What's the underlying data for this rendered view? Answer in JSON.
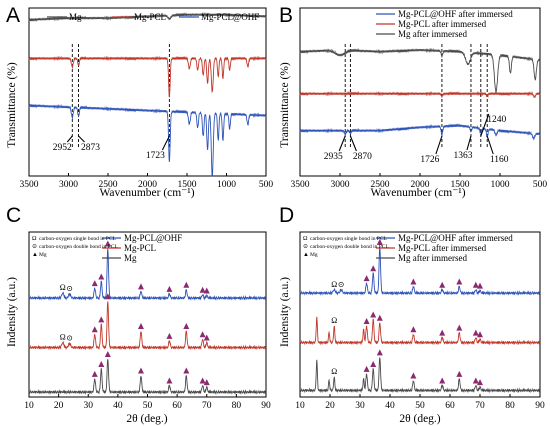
{
  "colors": {
    "Mg": "#4a4a4a",
    "Mg-PCL": "#c0392b",
    "Mg-PCL@OHF": "#2e54b8",
    "marker": "#8b2a6e"
  },
  "chart_data": [
    {
      "panel": "A",
      "type": "line",
      "xlabel": "Wavenumber (cm⁻¹)",
      "ylabel": "Transmittance (%)",
      "xlim": [
        3500,
        500
      ],
      "x_ticks": [
        "3500",
        "3000",
        "2500",
        "2000",
        "1500",
        "1000",
        "500"
      ],
      "legend": [
        "Mg",
        "Mg-PCL",
        "Mg-PCL@OHF"
      ],
      "legend_position": "top",
      "annotations": [
        "2952",
        "2873",
        "1723"
      ],
      "dashed_markers": [
        2952,
        2873,
        1723
      ],
      "series": [
        {
          "name": "Mg",
          "color": "#4a4a4a",
          "offset": 0.93,
          "baseline_x": [
            3500,
            3000,
            2500,
            2000,
            1500,
            1000,
            500
          ],
          "baseline_y": [
            0.0,
            0.01,
            0.01,
            0.02,
            0.03,
            0.03,
            0.02
          ],
          "peaks": [
            [
              1723,
              0.02,
              18
            ]
          ]
        },
        {
          "name": "Mg-PCL",
          "color": "#c0392b",
          "offset": 0.7,
          "baseline_x": [
            3500,
            3000,
            2500,
            2000,
            1500,
            1000,
            500
          ],
          "baseline_y": [
            0.0,
            0.0,
            0.0,
            0.0,
            0.0,
            0.0,
            0.0
          ],
          "peaks": [
            [
              2952,
              0.05,
              12
            ],
            [
              2873,
              0.04,
              10
            ],
            [
              1723,
              0.23,
              10
            ],
            [
              1470,
              0.06,
              12
            ],
            [
              1365,
              0.07,
              10
            ],
            [
              1295,
              0.1,
              10
            ],
            [
              1240,
              0.15,
              10
            ],
            [
              1180,
              0.2,
              12
            ],
            [
              1105,
              0.11,
              9
            ],
            [
              1045,
              0.12,
              9
            ],
            [
              960,
              0.07,
              9
            ],
            [
              730,
              0.05,
              10
            ]
          ]
        },
        {
          "name": "Mg-PCL@OHF",
          "color": "#2e54b8",
          "offset": 0.42,
          "baseline_x": [
            3500,
            3000,
            2500,
            2000,
            1500,
            1000,
            500
          ],
          "baseline_y": [
            0.0,
            -0.01,
            -0.02,
            -0.03,
            -0.04,
            -0.05,
            -0.06
          ],
          "peaks": [
            [
              2952,
              0.06,
              12
            ],
            [
              2873,
              0.05,
              10
            ],
            [
              1723,
              0.3,
              10
            ],
            [
              1470,
              0.07,
              12
            ],
            [
              1365,
              0.09,
              10
            ],
            [
              1295,
              0.14,
              10
            ],
            [
              1240,
              0.22,
              10
            ],
            [
              1180,
              0.38,
              12
            ],
            [
              1105,
              0.16,
              9
            ],
            [
              1045,
              0.16,
              9
            ],
            [
              960,
              0.09,
              9
            ],
            [
              730,
              0.06,
              10
            ]
          ]
        }
      ]
    },
    {
      "panel": "B",
      "type": "line",
      "xlabel": "Wavenumber (cm⁻¹)",
      "ylabel": "Transmittance (%)",
      "xlim": [
        3500,
        500
      ],
      "x_ticks": [
        "3500",
        "3000",
        "2500",
        "2000",
        "1500",
        "1000",
        "500"
      ],
      "legend": [
        "Mg-PCL@OHF after immersed",
        "Mg-PCL after immersed",
        "Mg after immersed"
      ],
      "legend_position": "top-right",
      "annotations": [
        "2935",
        "2870",
        "1726",
        "1363",
        "1240",
        "1160"
      ],
      "dashed_markers": [
        2935,
        2870,
        1726,
        1363,
        1240,
        1160
      ],
      "series": [
        {
          "name": "Mg after immersed",
          "color": "#4a4a4a",
          "offset": 0.74,
          "baseline_x": [
            3500,
            3000,
            2500,
            2000,
            1500,
            1000,
            500
          ],
          "baseline_y": [
            0.0,
            0.01,
            0.0,
            0.01,
            0.0,
            -0.02,
            -0.05
          ],
          "peaks": [
            [
              3000,
              0.03,
              60
            ],
            [
              1726,
              0.03,
              10
            ],
            [
              1400,
              0.07,
              30
            ],
            [
              1050,
              0.22,
              20
            ],
            [
              870,
              0.1,
              12
            ],
            [
              560,
              0.12,
              14
            ]
          ]
        },
        {
          "name": "Mg-PCL after immersed",
          "color": "#c0392b",
          "offset": 0.49,
          "baseline_x": [
            3500,
            3000,
            2500,
            2000,
            1500,
            1000,
            500
          ],
          "baseline_y": [
            0.0,
            0.0,
            0.0,
            0.0,
            0.0,
            0.0,
            0.0
          ],
          "peaks": [
            [
              1726,
              0.015,
              10
            ],
            [
              1160,
              0.015,
              10
            ],
            [
              570,
              0.02,
              12
            ]
          ]
        },
        {
          "name": "Mg-PCL@OHF after immersed",
          "color": "#2e54b8",
          "offset": 0.27,
          "baseline_x": [
            3500,
            3000,
            2500,
            2000,
            1500,
            1000,
            500
          ],
          "baseline_y": [
            0.0,
            0.0,
            0.0,
            0.02,
            0.03,
            0.0,
            -0.02
          ],
          "peaks": [
            [
              2935,
              0.02,
              12
            ],
            [
              2870,
              0.015,
              10
            ],
            [
              1726,
              0.05,
              10
            ],
            [
              1363,
              0.025,
              10
            ],
            [
              1240,
              0.03,
              10
            ],
            [
              1160,
              0.045,
              10
            ],
            [
              1050,
              0.03,
              12
            ],
            [
              580,
              0.03,
              14
            ]
          ]
        }
      ]
    },
    {
      "panel": "C",
      "type": "line",
      "xlabel": "2θ (deg.)",
      "ylabel": "Indensity (a.u.)",
      "xlim": [
        10,
        90
      ],
      "x_ticks": [
        "10",
        "20",
        "30",
        "40",
        "50",
        "60",
        "70",
        "80",
        "90"
      ],
      "legend": [
        "Mg-PCL@OHF",
        "Mg-PCL",
        "Mg"
      ],
      "legend_position": "top-right",
      "symbol_legend": [
        {
          "symbol": "Ω",
          "text": "carbon-oxygen single bond in PCL"
        },
        {
          "symbol": "⊙",
          "text": "carbon-oxygen double bond in PCL"
        },
        {
          "symbol": "▲",
          "text": "Mg"
        }
      ],
      "mg_peaks_2theta": [
        32.2,
        34.4,
        36.6,
        47.8,
        57.4,
        63.1,
        68.6,
        70.0
      ],
      "pcl_peaks_2theta": [
        21.4,
        23.7
      ],
      "series": [
        {
          "name": "Mg-PCL@OHF",
          "color": "#2e54b8",
          "offset": 0.6,
          "peaks": [
            [
              21.4,
              0.03,
              0.35
            ],
            [
              23.7,
              0.025,
              0.35
            ],
            [
              32.2,
              0.06,
              0.25
            ],
            [
              34.4,
              0.1,
              0.25
            ],
            [
              36.6,
              0.3,
              0.25
            ],
            [
              47.8,
              0.04,
              0.25
            ],
            [
              57.4,
              0.025,
              0.25
            ],
            [
              63.1,
              0.05,
              0.25
            ],
            [
              68.6,
              0.02,
              0.25
            ],
            [
              70.0,
              0.015,
              0.25
            ]
          ]
        },
        {
          "name": "Mg-PCL",
          "color": "#c0392b",
          "offset": 0.3,
          "peaks": [
            [
              21.4,
              0.03,
              0.35
            ],
            [
              23.7,
              0.025,
              0.35
            ],
            [
              32.2,
              0.08,
              0.25
            ],
            [
              34.4,
              0.14,
              0.25
            ],
            [
              36.6,
              0.28,
              0.25
            ],
            [
              47.8,
              0.1,
              0.25
            ],
            [
              57.4,
              0.04,
              0.25
            ],
            [
              63.1,
              0.1,
              0.25
            ],
            [
              68.6,
              0.05,
              0.25
            ],
            [
              70.0,
              0.03,
              0.25
            ]
          ]
        },
        {
          "name": "Mg",
          "color": "#4a4a4a",
          "offset": 0.03,
          "peaks": [
            [
              32.2,
              0.08,
              0.25
            ],
            [
              34.4,
              0.14,
              0.25
            ],
            [
              36.6,
              0.2,
              0.25
            ],
            [
              47.8,
              0.1,
              0.25
            ],
            [
              57.4,
              0.04,
              0.25
            ],
            [
              63.1,
              0.1,
              0.25
            ],
            [
              68.6,
              0.04,
              0.25
            ],
            [
              70.0,
              0.03,
              0.25
            ]
          ]
        }
      ]
    },
    {
      "panel": "D",
      "type": "line",
      "xlabel": "2θ (deg.)",
      "ylabel": "Indensity (a.u.)",
      "xlim": [
        10,
        90
      ],
      "x_ticks": [
        "10",
        "20",
        "30",
        "40",
        "50",
        "60",
        "70",
        "80",
        "90"
      ],
      "legend": [
        "Mg-PCL@OHF after immersed",
        "Mg-PCL after immersed",
        "Mg after immersed"
      ],
      "legend_position": "top-right",
      "symbol_legend": [
        {
          "symbol": "Ω",
          "text": "carbon-oxygen single bond in PCL"
        },
        {
          "symbol": "⊙",
          "text": "carbon-oxygen double bond in PCL"
        },
        {
          "symbol": "▲",
          "text": "Mg"
        }
      ],
      "mg_peaks_2theta": [
        32.2,
        34.4,
        36.6,
        47.8,
        57.4,
        63.1,
        68.6,
        70.0
      ],
      "pcl_peaks_2theta": [
        21.4,
        23.7
      ],
      "series": [
        {
          "name": "Mg-PCL@OHF after immersed",
          "color": "#2e54b8",
          "offset": 0.63,
          "peaks": [
            [
              21.4,
              0.02,
              0.35
            ],
            [
              23.7,
              0.02,
              0.35
            ],
            [
              32.2,
              0.06,
              0.25
            ],
            [
              34.4,
              0.12,
              0.25
            ],
            [
              36.6,
              0.28,
              0.25
            ],
            [
              47.8,
              0.04,
              0.25
            ],
            [
              57.4,
              0.02,
              0.25
            ],
            [
              63.1,
              0.04,
              0.25
            ],
            [
              68.6,
              0.02,
              0.25
            ],
            [
              70.0,
              0.015,
              0.25
            ]
          ]
        },
        {
          "name": "Mg-PCL after immersed",
          "color": "#c0392b",
          "offset": 0.33,
          "peaks": [
            [
              15.6,
              0.15,
              0.2
            ],
            [
              19.7,
              0.06,
              0.2
            ],
            [
              21.4,
              0.1,
              0.2
            ],
            [
              31.2,
              0.08,
              0.2
            ],
            [
              32.2,
              0.1,
              0.25
            ],
            [
              34.4,
              0.14,
              0.25
            ],
            [
              36.6,
              0.12,
              0.25
            ],
            [
              47.8,
              0.05,
              0.25
            ],
            [
              57.4,
              0.03,
              0.25
            ],
            [
              63.1,
              0.06,
              0.25
            ],
            [
              68.6,
              0.03,
              0.25
            ],
            [
              70.0,
              0.02,
              0.25
            ]
          ]
        },
        {
          "name": "Mg after immersed",
          "color": "#4a4a4a",
          "offset": 0.04,
          "peaks": [
            [
              15.6,
              0.18,
              0.2
            ],
            [
              19.7,
              0.06,
              0.2
            ],
            [
              21.4,
              0.08,
              0.2
            ],
            [
              31.2,
              0.07,
              0.2
            ],
            [
              32.2,
              0.1,
              0.25
            ],
            [
              34.4,
              0.13,
              0.25
            ],
            [
              36.6,
              0.2,
              0.25
            ],
            [
              47.8,
              0.06,
              0.25
            ],
            [
              57.4,
              0.03,
              0.25
            ],
            [
              63.1,
              0.07,
              0.25
            ],
            [
              68.6,
              0.03,
              0.25
            ],
            [
              70.0,
              0.02,
              0.25
            ]
          ]
        }
      ]
    }
  ]
}
